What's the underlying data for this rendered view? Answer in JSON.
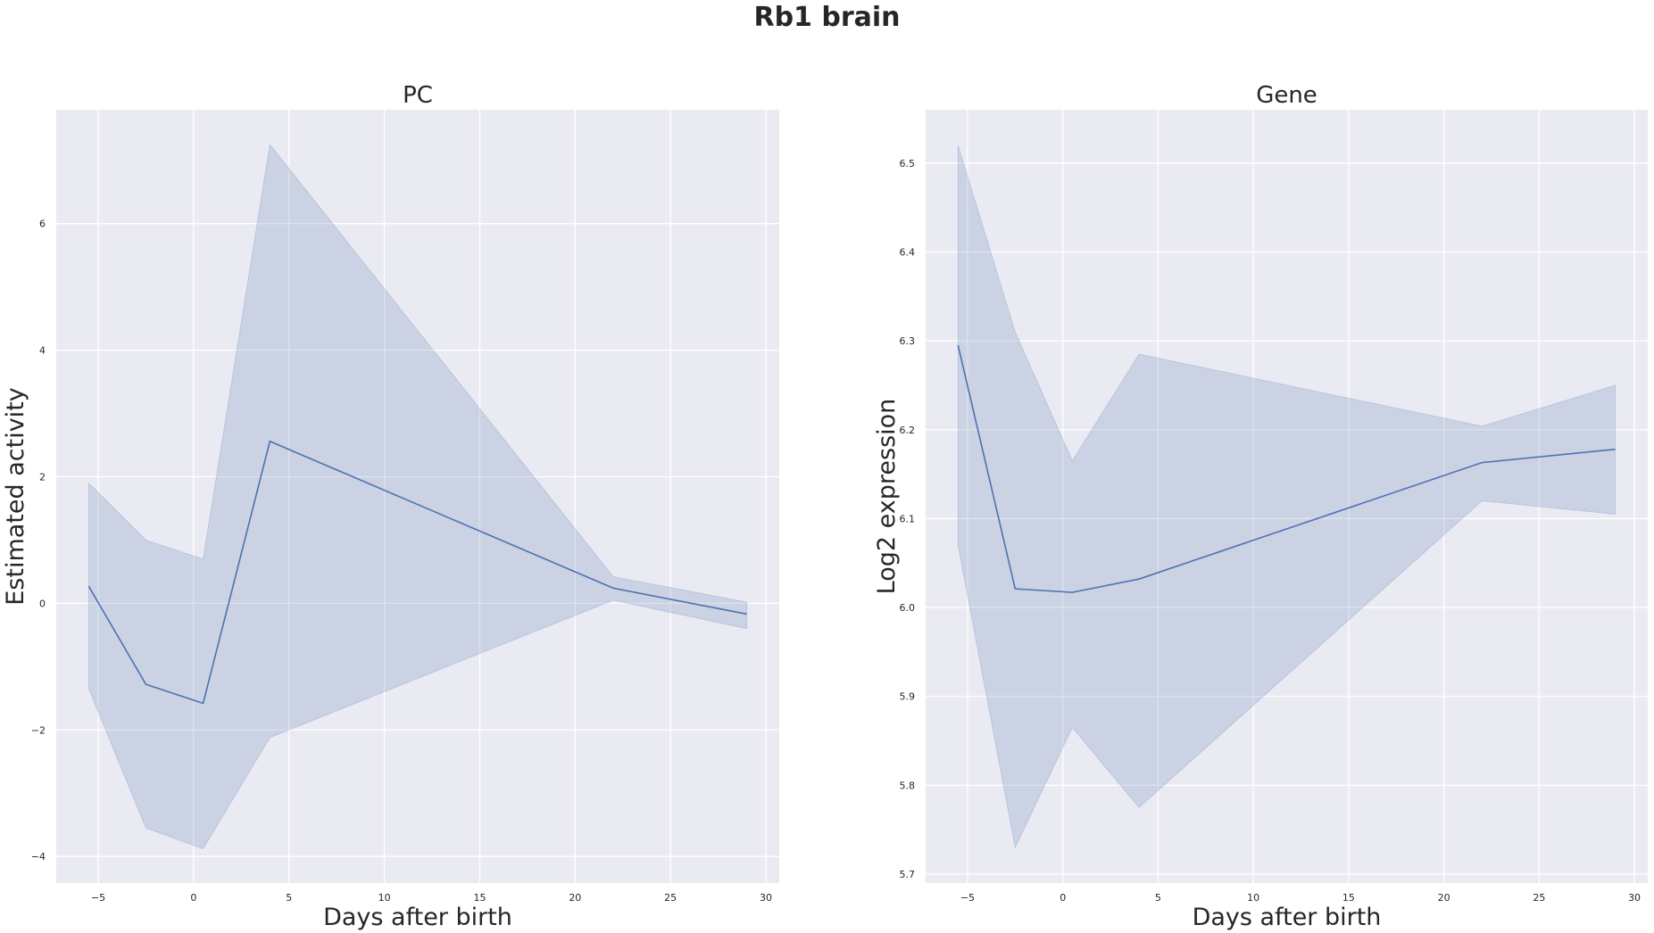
{
  "figure": {
    "title": "Rb1 brain"
  },
  "colors": {
    "panel_bg": "#EAEAF2",
    "grid": "#FFFFFF",
    "line": "#4C72B0",
    "band": "#4C72B0",
    "text": "#262626"
  },
  "chart_data": [
    {
      "type": "line",
      "title": "PC",
      "xlabel": "Days after birth",
      "ylabel": "Estimated activity",
      "xlim": [
        -7.2,
        30.7
      ],
      "ylim": [
        -4.42,
        7.8
      ],
      "xticks": [
        -5,
        0,
        5,
        10,
        15,
        20,
        25,
        30
      ],
      "xtick_labels": [
        "−5",
        "0",
        "5",
        "10",
        "15",
        "20",
        "25",
        "30"
      ],
      "yticks": [
        -4,
        -2,
        0,
        2,
        4,
        6
      ],
      "ytick_labels": [
        "−4",
        "−2",
        "0",
        "2",
        "4",
        "6"
      ],
      "grid": true,
      "series": [
        {
          "x": [
            -5.5,
            -2.5,
            0.5,
            4,
            22,
            29
          ],
          "y": [
            0.27,
            -1.28,
            -1.58,
            2.56,
            0.24,
            -0.17
          ],
          "ci_low": [
            -1.35,
            -3.55,
            -3.88,
            -2.12,
            0.05,
            -0.4
          ],
          "ci_high": [
            1.9,
            1.0,
            0.7,
            7.25,
            0.42,
            0.02
          ]
        }
      ]
    },
    {
      "type": "line",
      "title": "Gene",
      "xlabel": "Days after birth",
      "ylabel": "Log2 expression",
      "xlim": [
        -7.2,
        30.7
      ],
      "ylim": [
        5.69,
        6.56
      ],
      "xticks": [
        -5,
        0,
        5,
        10,
        15,
        20,
        25,
        30
      ],
      "xtick_labels": [
        "−5",
        "0",
        "5",
        "10",
        "15",
        "20",
        "25",
        "30"
      ],
      "yticks": [
        5.7,
        5.8,
        5.9,
        6.0,
        6.1,
        6.2,
        6.3,
        6.4,
        6.5
      ],
      "ytick_labels": [
        "5.7",
        "5.8",
        "5.9",
        "6.0",
        "6.1",
        "6.2",
        "6.3",
        "6.4",
        "6.5"
      ],
      "grid": true,
      "series": [
        {
          "x": [
            -5.5,
            -2.5,
            0.5,
            4,
            22,
            29
          ],
          "y": [
            6.295,
            6.021,
            6.017,
            6.032,
            6.163,
            6.178
          ],
          "ci_low": [
            6.07,
            5.73,
            5.865,
            5.775,
            6.12,
            6.105
          ],
          "ci_high": [
            6.52,
            6.31,
            6.165,
            6.285,
            6.204,
            6.25
          ]
        }
      ]
    }
  ]
}
